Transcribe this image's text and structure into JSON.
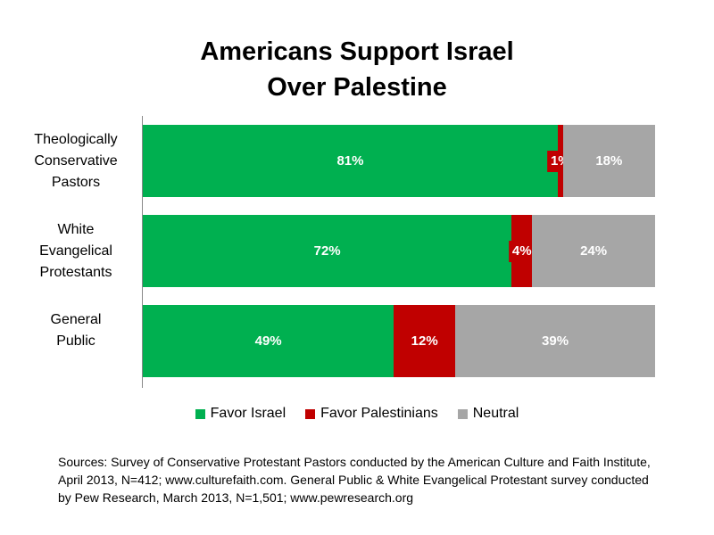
{
  "chart_data": {
    "type": "stacked-bar-horizontal",
    "title": "Americans Support Israel Over Palestine",
    "categories": [
      "Theologically\nConservative\nPastors",
      "White\nEvangelical\nProtestants",
      "General\nPublic"
    ],
    "series": [
      {
        "name": "Favor Israel",
        "color": "#00b050",
        "values": [
          81,
          72,
          49
        ],
        "value_labels": [
          "81%",
          "72%",
          "49%"
        ]
      },
      {
        "name": "Favor Palestinians",
        "color": "#c00000",
        "values": [
          1,
          4,
          12
        ],
        "value_labels": [
          "1%",
          "4%",
          "12%"
        ]
      },
      {
        "name": "Neutral",
        "color": "#a6a6a6",
        "values": [
          18,
          24,
          39
        ],
        "value_labels": [
          "18%",
          "24%",
          "39%"
        ]
      }
    ],
    "xlim": [
      0,
      100
    ],
    "legend": "bottom",
    "source": "Sources: Survey of Conservative Protestant Pastors conducted by the American Culture and Faith Institute, April 2013, N=412; www.culturefaith.com. General Public & White Evangelical Protestant survey conducted by Pew Research, March 2013, N=1,501; www.pewresearch.org"
  }
}
